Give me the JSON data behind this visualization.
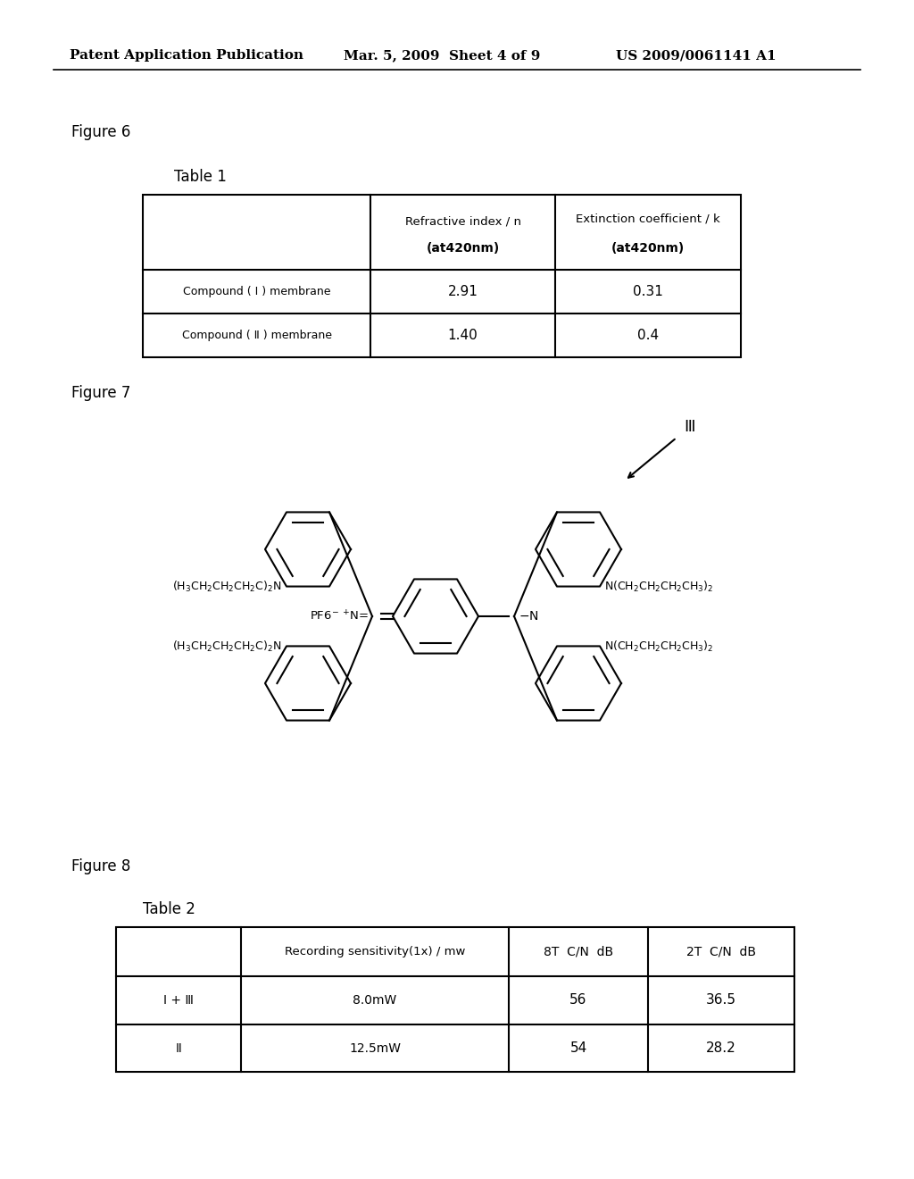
{
  "header_left": "Patent Application Publication",
  "header_mid": "Mar. 5, 2009  Sheet 4 of 9",
  "header_right": "US 2009/0061141 A1",
  "fig6_label": "Figure 6",
  "table1_label": "Table 1",
  "table1_col2_header_line1": "Refractive index / n",
  "table1_col2_header_line2": "(at420nm)",
  "table1_col3_header_line1": "Extinction coefficient / k",
  "table1_col3_header_line2": "(at420nm)",
  "table1_row1_label": "Compound ( Ⅰ ) membrane",
  "table1_row1_val1": "2.91",
  "table1_row1_val2": "0.31",
  "table1_row2_label": "Compound ( Ⅱ ) membrane",
  "table1_row2_val1": "1.40",
  "table1_row2_val2": "0.4",
  "fig7_label": "Figure 7",
  "compound_label": "Ⅲ",
  "fig8_label": "Figure 8",
  "table2_label": "Table 2",
  "table2_col2_header": "Recording sensitivity(1x) / mw",
  "table2_col3_header": "8T  C/N  dB",
  "table2_col4_header": "2T  C/N  dB",
  "table2_row1_label": "I + Ⅲ",
  "table2_row1_val1": "8.0mW",
  "table2_row1_val2": "56",
  "table2_row1_val3": "36.5",
  "table2_row2_label": "Ⅱ",
  "table2_row2_val1": "12.5mW",
  "table2_row2_val2": "54",
  "table2_row2_val3": "28.2",
  "bg_color": "#ffffff",
  "text_color": "#000000"
}
